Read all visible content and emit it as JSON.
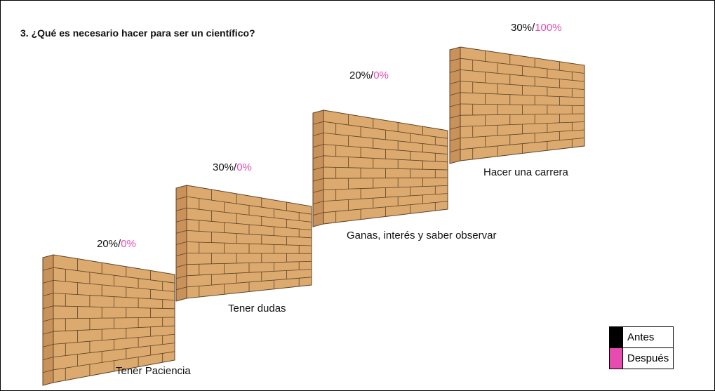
{
  "title": "3. ¿Qué es necesario hacer para ser un científico?",
  "steps": [
    {
      "label": "Tener Paciencia",
      "antes": "20%",
      "separator": "/",
      "despues": "0%"
    },
    {
      "label": "Tener dudas",
      "antes": "30%",
      "separator": "/",
      "despues": "0%"
    },
    {
      "label": "Ganas, interés y saber observar",
      "antes": "20%",
      "separator": "/",
      "despues": "0%"
    },
    {
      "label": "Hacer una carrera",
      "antes": "30%",
      "separator": "/",
      "despues": "100%"
    }
  ],
  "legend": [
    "Antes",
    "Después"
  ]
}
